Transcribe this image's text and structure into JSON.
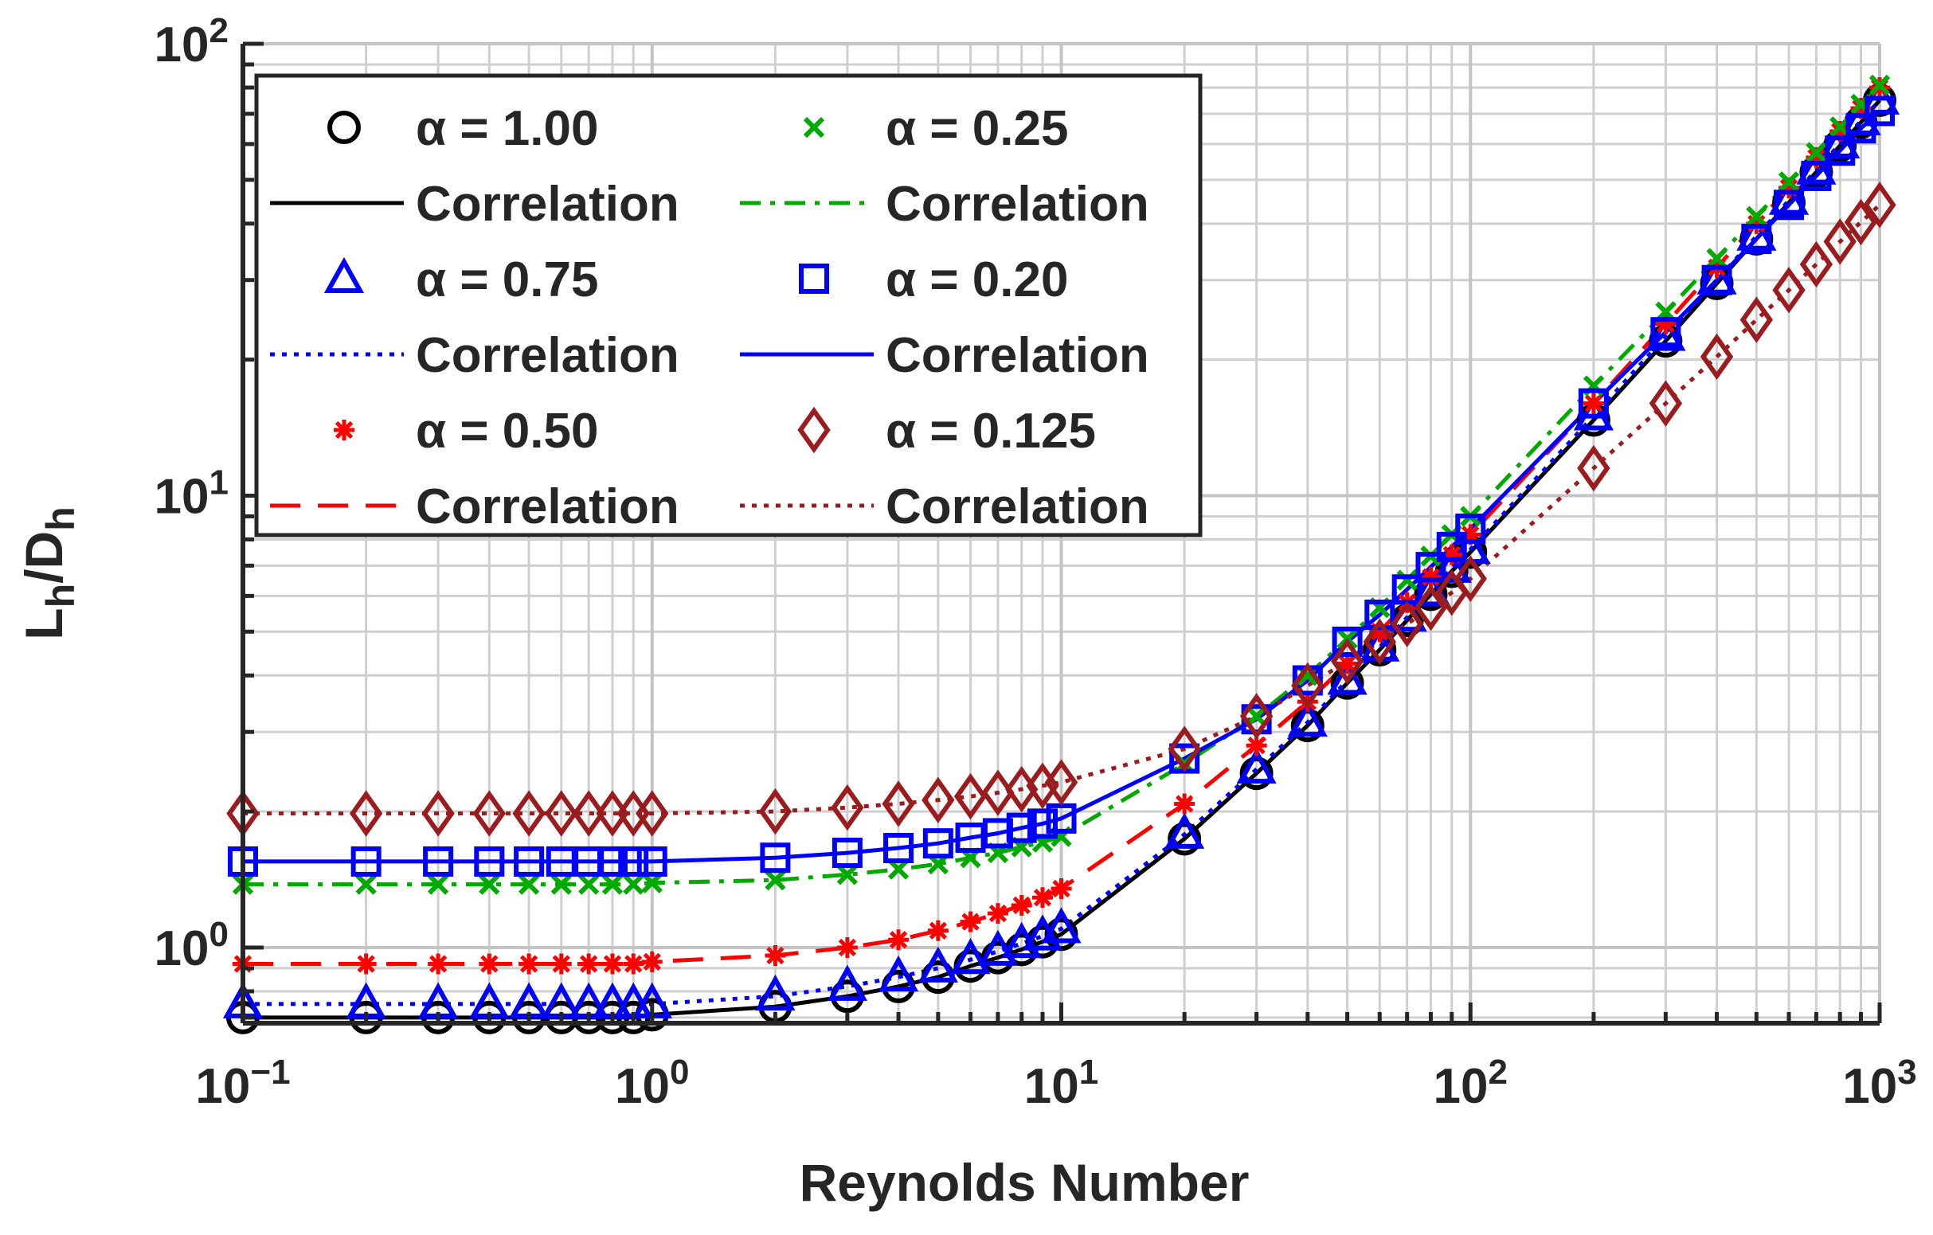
{
  "chart_data": {
    "type": "line",
    "xscale": "log",
    "yscale": "log",
    "xlabel": "Reynolds Number",
    "ylabel": {
      "main": "L",
      "sub1": "h",
      "mid": "/D",
      "sub2": "h"
    },
    "xlim": [
      0.1,
      1000
    ],
    "ylim": [
      0.68,
      100
    ],
    "grid": true,
    "legend_position": "top-left",
    "x_ticks": [
      {
        "value": 0.1,
        "base": "10",
        "exp": "−1"
      },
      {
        "value": 1,
        "base": "10",
        "exp": "0"
      },
      {
        "value": 10,
        "base": "10",
        "exp": "1"
      },
      {
        "value": 100,
        "base": "10",
        "exp": "2"
      },
      {
        "value": 1000,
        "base": "10",
        "exp": "3"
      }
    ],
    "y_ticks": [
      {
        "value": 1,
        "base": "10",
        "exp": "0"
      },
      {
        "value": 10,
        "base": "10",
        "exp": "1"
      },
      {
        "value": 100,
        "base": "10",
        "exp": "2"
      }
    ],
    "x": [
      0.1,
      0.2,
      0.3,
      0.4,
      0.5,
      0.6,
      0.7,
      0.8,
      0.9,
      1,
      2,
      3,
      4,
      5,
      6,
      7,
      8,
      9,
      10,
      20,
      30,
      40,
      50,
      60,
      70,
      80,
      90,
      100,
      200,
      300,
      400,
      500,
      600,
      700,
      800,
      900,
      1000
    ],
    "series": [
      {
        "name": "α = 1.00",
        "correlation_label": "Correlation",
        "color": "#000000",
        "marker": "circle",
        "line": "solid",
        "values": [
          0.7,
          0.7,
          0.7,
          0.7,
          0.7,
          0.7,
          0.7,
          0.7,
          0.7,
          0.71,
          0.74,
          0.78,
          0.82,
          0.86,
          0.91,
          0.95,
          0.99,
          1.03,
          1.07,
          1.74,
          2.43,
          3.1,
          3.85,
          4.56,
          5.3,
          6.05,
          6.8,
          7.5,
          14.7,
          22.0,
          29.5,
          37.0,
          44.5,
          52.0,
          59.5,
          67.0,
          75.0
        ]
      },
      {
        "name": "α = 0.75",
        "correlation_label": "Correlation",
        "color": "#0000ff",
        "marker": "triangle",
        "line": "dotted",
        "values": [
          0.75,
          0.75,
          0.75,
          0.75,
          0.75,
          0.75,
          0.75,
          0.75,
          0.75,
          0.75,
          0.78,
          0.82,
          0.86,
          0.9,
          0.94,
          0.98,
          1.02,
          1.06,
          1.1,
          1.78,
          2.48,
          3.15,
          3.9,
          4.62,
          5.38,
          6.12,
          6.9,
          7.6,
          15.0,
          22.5,
          30.0,
          37.5,
          45.0,
          52.5,
          60.0,
          67.5,
          75.0
        ]
      },
      {
        "name": "α = 0.50",
        "correlation_label": "Correlation",
        "color": "#ff0000",
        "marker": "asterisk",
        "line": "dashed",
        "values": [
          0.92,
          0.92,
          0.92,
          0.92,
          0.92,
          0.92,
          0.92,
          0.92,
          0.92,
          0.93,
          0.96,
          1.0,
          1.04,
          1.09,
          1.14,
          1.19,
          1.24,
          1.29,
          1.35,
          2.08,
          2.8,
          3.5,
          4.25,
          5.0,
          5.8,
          6.6,
          7.4,
          8.2,
          16.0,
          24.0,
          32.0,
          40.0,
          48.0,
          56.0,
          64.0,
          72.0,
          80.0
        ]
      },
      {
        "name": "α = 0.25",
        "correlation_label": "Correlation",
        "color": "#00aa00",
        "marker": "cross",
        "line": "dashdot",
        "values": [
          1.38,
          1.38,
          1.38,
          1.38,
          1.38,
          1.38,
          1.38,
          1.38,
          1.38,
          1.39,
          1.41,
          1.45,
          1.49,
          1.53,
          1.58,
          1.62,
          1.67,
          1.71,
          1.76,
          2.55,
          3.25,
          4.0,
          4.82,
          5.65,
          6.5,
          7.35,
          8.2,
          9.0,
          17.5,
          25.5,
          33.5,
          41.5,
          49.5,
          57.5,
          65.5,
          73.5,
          81.0
        ]
      },
      {
        "name": "α = 0.20",
        "correlation_label": "Correlation",
        "color": "#0000ff",
        "marker": "square",
        "line": "solid",
        "values": [
          1.55,
          1.55,
          1.55,
          1.55,
          1.55,
          1.55,
          1.55,
          1.55,
          1.55,
          1.55,
          1.58,
          1.62,
          1.66,
          1.7,
          1.75,
          1.79,
          1.84,
          1.88,
          1.93,
          2.62,
          3.2,
          3.9,
          4.75,
          5.45,
          6.2,
          6.95,
          7.7,
          8.45,
          16.0,
          23.0,
          30.0,
          37.0,
          44.0,
          51.0,
          58.0,
          65.0,
          71.0
        ]
      },
      {
        "name": "α = 0.125",
        "correlation_label": "Correlation",
        "color": "#9b1c1f",
        "marker": "diamond",
        "line": "dotted",
        "values": [
          1.98,
          1.98,
          1.98,
          1.98,
          1.98,
          1.98,
          1.98,
          1.98,
          1.98,
          1.98,
          2.0,
          2.04,
          2.08,
          2.12,
          2.16,
          2.2,
          2.24,
          2.28,
          2.32,
          2.75,
          3.25,
          3.8,
          4.3,
          4.75,
          5.2,
          5.65,
          6.1,
          6.55,
          11.5,
          16.0,
          20.3,
          24.5,
          28.5,
          32.5,
          36.5,
          40.3,
          44.0
        ]
      }
    ],
    "legend_order": [
      0,
      3,
      1,
      4,
      2,
      5
    ]
  }
}
